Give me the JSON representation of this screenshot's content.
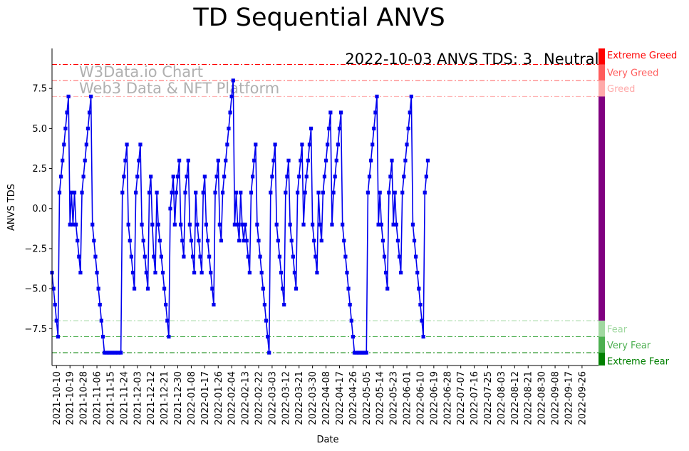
{
  "chart_data": {
    "type": "line",
    "title": "TD Sequential ANVS",
    "xlabel": "Date",
    "ylabel": "ANVS TDS",
    "ylim": [
      -9.8,
      10.0
    ],
    "yticks": [
      -7.5,
      -5.0,
      -2.5,
      0.0,
      2.5,
      5.0,
      7.5
    ],
    "ytick_labels": [
      "−7.5",
      "−5.0",
      "−2.5",
      "0.0",
      "2.5",
      "5.0",
      "7.5"
    ],
    "xticks": [
      "2021-10-10",
      "2021-10-19",
      "2021-10-28",
      "2021-11-06",
      "2021-11-15",
      "2021-11-24",
      "2021-12-03",
      "2021-12-12",
      "2021-12-21",
      "2021-12-30",
      "2022-01-08",
      "2022-01-17",
      "2022-01-26",
      "2022-02-04",
      "2022-02-13",
      "2022-02-22",
      "2022-03-03",
      "2022-03-12",
      "2022-03-21",
      "2022-03-30",
      "2022-04-08",
      "2022-04-17",
      "2022-04-26",
      "2022-05-05",
      "2022-05-14",
      "2022-05-23",
      "2022-06-01",
      "2022-06-10",
      "2022-06-19",
      "2022-06-28",
      "2022-07-07",
      "2022-07-16",
      "2022-07-25",
      "2022-08-03",
      "2022-08-12",
      "2022-08-21",
      "2022-08-30",
      "2022-09-08",
      "2022-09-17",
      "2022-09-26"
    ],
    "series": [
      {
        "name": "ANVS TDS",
        "color": "#0000ee",
        "start_date": "2021-10-07",
        "values": [
          -4,
          -5,
          -6,
          -7,
          -8,
          1,
          2,
          3,
          4,
          5,
          6,
          7,
          -1,
          1,
          -1,
          1,
          -1,
          -2,
          -3,
          -4,
          1,
          2,
          3,
          4,
          5,
          6,
          7,
          -1,
          -2,
          -3,
          -4,
          -5,
          -6,
          -7,
          -8,
          -9,
          -9,
          -9,
          -9,
          -9,
          -9,
          -9,
          -9,
          -9,
          -9,
          -9,
          -9,
          1,
          2,
          3,
          4,
          -1,
          -2,
          -3,
          -4,
          -5,
          1,
          2,
          3,
          4,
          -1,
          -2,
          -3,
          -4,
          -5,
          1,
          2,
          -1,
          -3,
          -4,
          1,
          -1,
          -2,
          -3,
          -4,
          -5,
          -6,
          -7,
          -8,
          0,
          1,
          2,
          -1,
          1,
          2,
          3,
          -1,
          -2,
          -3,
          1,
          2,
          3,
          -1,
          -2,
          -3,
          -4,
          1,
          -1,
          -2,
          -3,
          -4,
          1,
          2,
          -1,
          -2,
          -3,
          -4,
          -5,
          -6,
          1,
          2,
          3,
          -1,
          -2,
          1,
          2,
          3,
          4,
          5,
          6,
          7,
          8,
          -1,
          1,
          -1,
          -2,
          1,
          -1,
          -2,
          -1,
          -2,
          -3,
          -4,
          1,
          2,
          3,
          4,
          -1,
          -2,
          -3,
          -4,
          -5,
          -6,
          -7,
          -8,
          -9,
          1,
          2,
          3,
          4,
          -1,
          -2,
          -3,
          -4,
          -5,
          -6,
          1,
          2,
          3,
          -1,
          -2,
          -3,
          -4,
          -5,
          1,
          2,
          3,
          4,
          -1,
          1,
          2,
          3,
          4,
          5,
          -1,
          -2,
          -3,
          -4,
          1,
          -1,
          -2,
          1,
          2,
          3,
          4,
          5,
          6,
          -1,
          1,
          2,
          3,
          4,
          5,
          6,
          -1,
          -2,
          -3,
          -4,
          -5,
          -6,
          -7,
          -8,
          -9,
          -9,
          -9,
          -9,
          -9,
          -9,
          -9,
          -9,
          -9,
          1,
          2,
          3,
          4,
          5,
          6,
          7,
          -1,
          1,
          -1,
          -2,
          -3,
          -4,
          -5,
          1,
          2,
          3,
          -1,
          1,
          -1,
          -2,
          -3,
          -4,
          1,
          2,
          3,
          4,
          5,
          6,
          7,
          -1,
          -2,
          -3,
          -4,
          -5,
          -6,
          -7,
          -8,
          1,
          2,
          3
        ]
      }
    ],
    "zones": [
      {
        "name": "Extreme Greed",
        "level": 9,
        "color": "#ff0000"
      },
      {
        "name": "Very Greed",
        "level": 8,
        "color": "#ff5c5c"
      },
      {
        "name": "Greed",
        "level": 7,
        "color": "#ffaaaa"
      },
      {
        "name": "Neutral",
        "level": 0,
        "color": "#800080"
      },
      {
        "name": "Fear",
        "level": -7,
        "color": "#a0d8a0"
      },
      {
        "name": "Very Fear",
        "level": -8,
        "color": "#4caf50"
      },
      {
        "name": "Extreme Fear",
        "level": -9,
        "color": "#008000"
      }
    ],
    "annotation": {
      "date_label": "2022-10-03 ANVS TDS: 3",
      "status": "Neutral",
      "status_color": "#800080"
    },
    "watermark": [
      "W3Data.io Chart",
      "Web3 Data & NFT Platform"
    ]
  }
}
